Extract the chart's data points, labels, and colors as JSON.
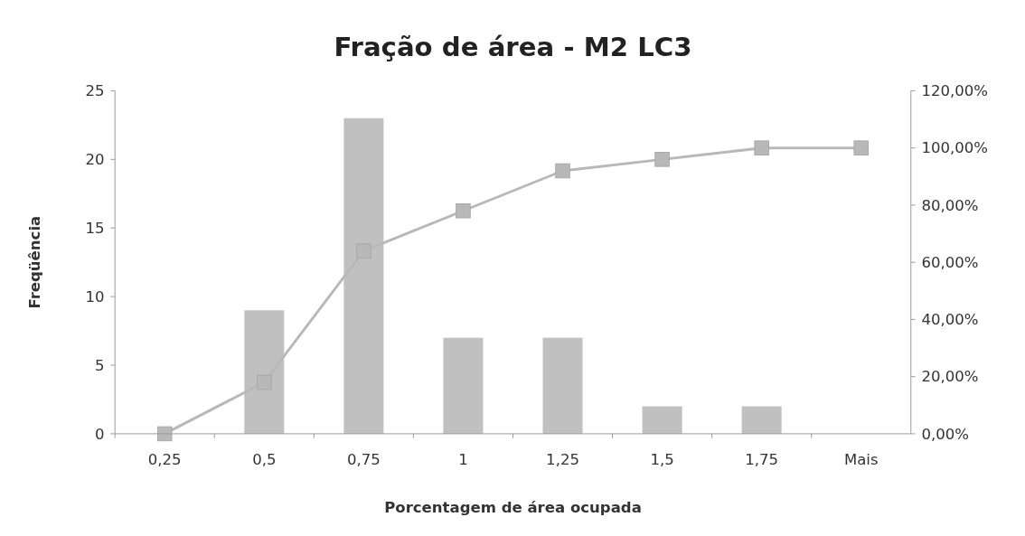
{
  "chart_data": {
    "type": "bar",
    "title": "Fração de área - M2 LC3",
    "xlabel": "Porcentagem de área ocupada",
    "ylabel": "Freqüência",
    "categories": [
      "0,25",
      "0,5",
      "0,75",
      "1",
      "1,25",
      "1,5",
      "1,75",
      "Mais"
    ],
    "series": [
      {
        "color": "#c0c0c0",
        "values": [
          0,
          9,
          23,
          7,
          7,
          2,
          2,
          0
        ]
      },
      {
        "type": "line",
        "axis": "y2",
        "color": "#b8b8b8",
        "marker": "square",
        "values": [
          0,
          18,
          64,
          78,
          92,
          96,
          100,
          100
        ]
      }
    ],
    "ylim": [
      0,
      25
    ],
    "yticks": [
      0,
      5,
      10,
      15,
      20,
      25
    ],
    "y2lim": [
      0,
      120
    ],
    "y2ticks": [
      {
        "value": 0,
        "label": "0,00%"
      },
      {
        "value": 20,
        "label": "20,00%"
      },
      {
        "value": 40,
        "label": "40,00%"
      },
      {
        "value": 60,
        "label": "60,00%"
      },
      {
        "value": 80,
        "label": "80,00%"
      },
      {
        "value": 100,
        "label": "100,00%"
      },
      {
        "value": 120,
        "label": "120,00%"
      }
    ],
    "grid": false
  }
}
